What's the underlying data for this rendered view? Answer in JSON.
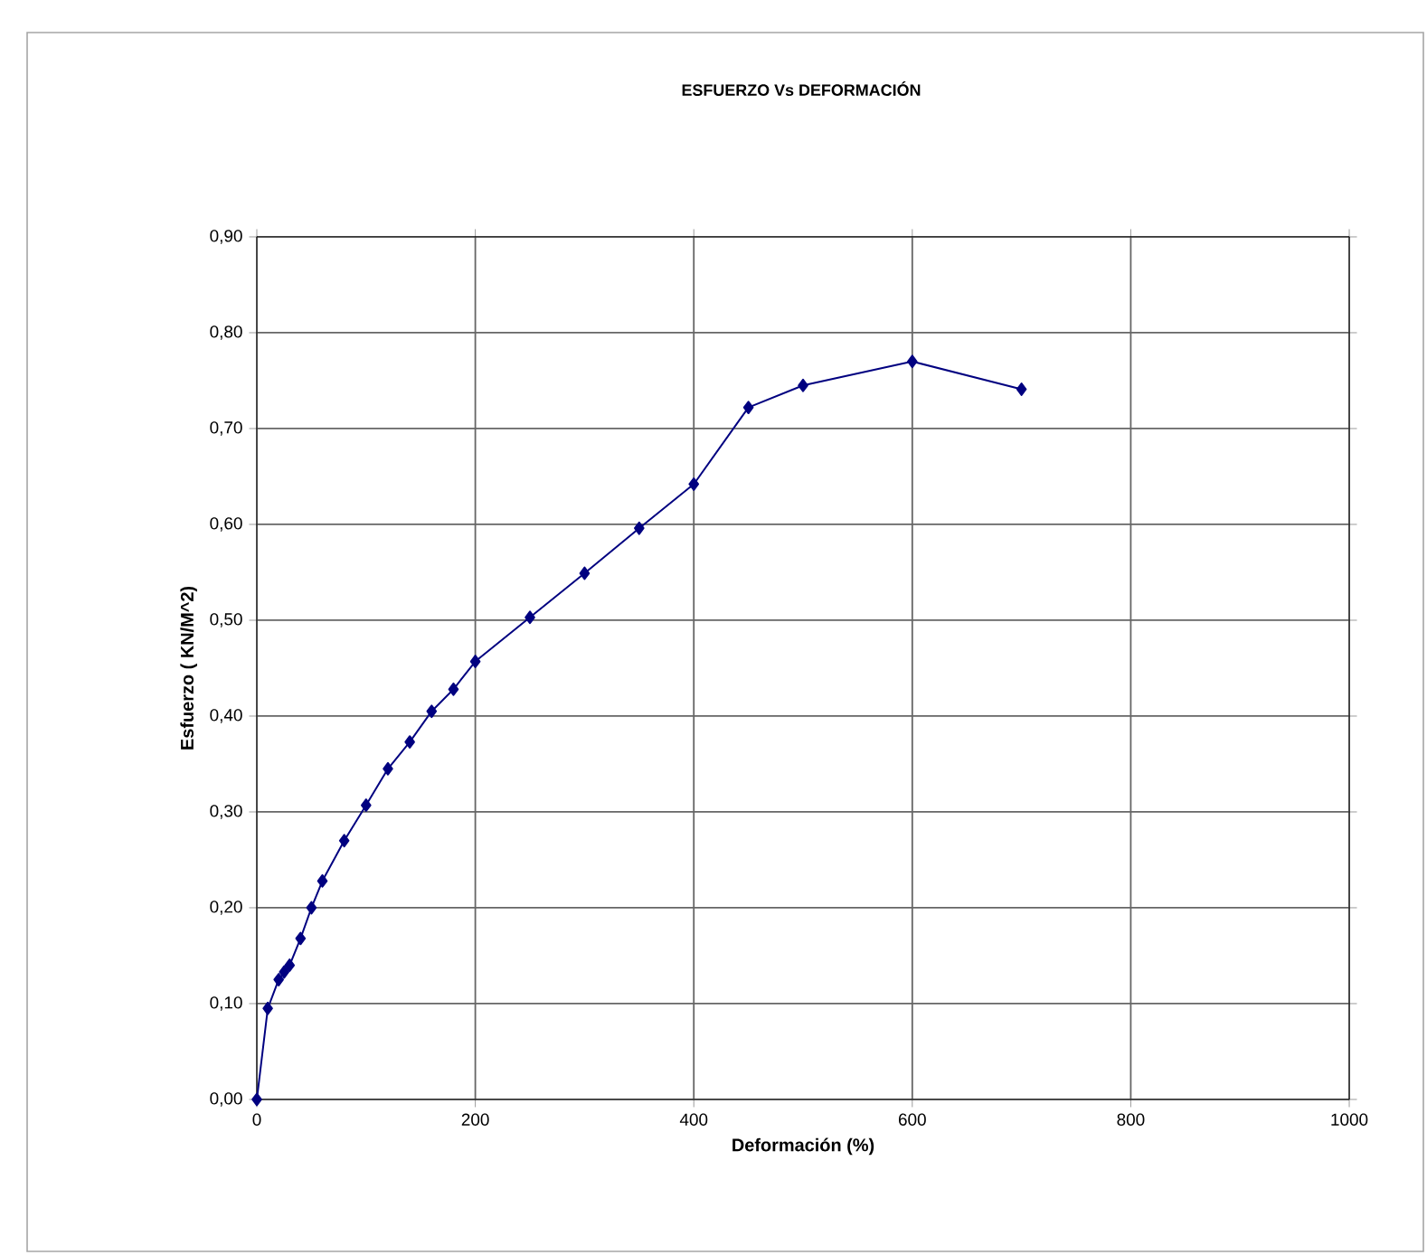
{
  "chart_data": {
    "type": "line",
    "title": "ESFUERZO Vs DEFORMACIÓN",
    "xlabel": "Deformación  (%)",
    "ylabel": "Esfuerzo  ( KN/M^2)",
    "x": [
      0,
      10,
      20,
      25,
      30,
      40,
      50,
      60,
      80,
      100,
      120,
      140,
      160,
      180,
      200,
      250,
      300,
      350,
      400,
      450,
      500,
      600,
      700
    ],
    "series": [
      {
        "color": "#000080",
        "values": [
          0,
          0.095,
          0.125,
          0.133,
          0.14,
          0.168,
          0.2,
          0.228,
          0.27,
          0.307,
          0.345,
          0.373,
          0.405,
          0.428,
          0.457,
          0.503,
          0.549,
          0.596,
          0.642,
          0.722,
          0.745,
          0.77,
          0.741
        ]
      }
    ],
    "xlim": [
      0,
      1000
    ],
    "xticks": [
      0,
      200,
      400,
      600,
      800,
      1000
    ],
    "ylim": [
      0,
      0.9
    ],
    "yticks": [
      {
        "value": 0,
        "label": "0,00"
      },
      {
        "value": 0.1,
        "label": "0,10"
      },
      {
        "value": 0.2,
        "label": "0,20"
      },
      {
        "value": 0.3,
        "label": "0,30"
      },
      {
        "value": 0.4,
        "label": "0,40"
      },
      {
        "value": 0.5,
        "label": "0,50"
      },
      {
        "value": 0.6,
        "label": "0,60"
      },
      {
        "value": 0.7,
        "label": "0,70"
      },
      {
        "value": 0.8,
        "label": "0,80"
      },
      {
        "value": 0.9,
        "label": "0,90"
      }
    ],
    "grid": true,
    "marker": "diamond",
    "line_style": "solid"
  }
}
